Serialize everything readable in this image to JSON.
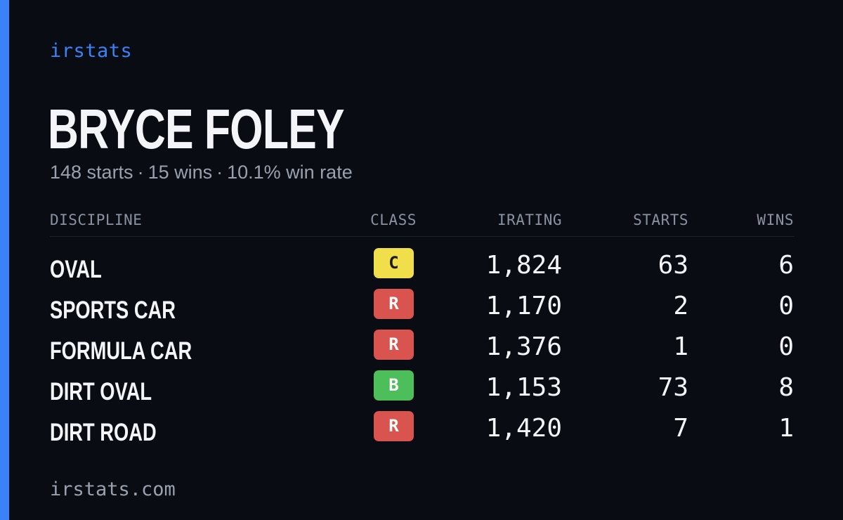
{
  "brand": "irstats",
  "player": {
    "name": "BRYCE FOLEY",
    "starts_text": "148 starts",
    "wins_text": "15 wins",
    "win_rate_text": "10.1% win rate",
    "separator": "·"
  },
  "table": {
    "headers": {
      "discipline": "DISCIPLINE",
      "class": "CLASS",
      "irating": "IRATING",
      "starts": "STARTS",
      "wins": "WINS"
    },
    "rows": [
      {
        "discipline": "OVAL",
        "class": "C",
        "irating": "1,824",
        "starts": "63",
        "wins": "6"
      },
      {
        "discipline": "SPORTS CAR",
        "class": "R",
        "irating": "1,170",
        "starts": "2",
        "wins": "0"
      },
      {
        "discipline": "FORMULA CAR",
        "class": "R",
        "irating": "1,376",
        "starts": "1",
        "wins": "0"
      },
      {
        "discipline": "DIRT OVAL",
        "class": "B",
        "irating": "1,153",
        "starts": "73",
        "wins": "8"
      },
      {
        "discipline": "DIRT ROAD",
        "class": "R",
        "irating": "1,420",
        "starts": "7",
        "wins": "1"
      }
    ]
  },
  "footer": "irstats.com",
  "colors": {
    "accent": "#3b82f6",
    "background": "#0a0c13",
    "class_C": "#f0de4a",
    "class_R": "#d9534f",
    "class_B": "#4cbf5a"
  }
}
